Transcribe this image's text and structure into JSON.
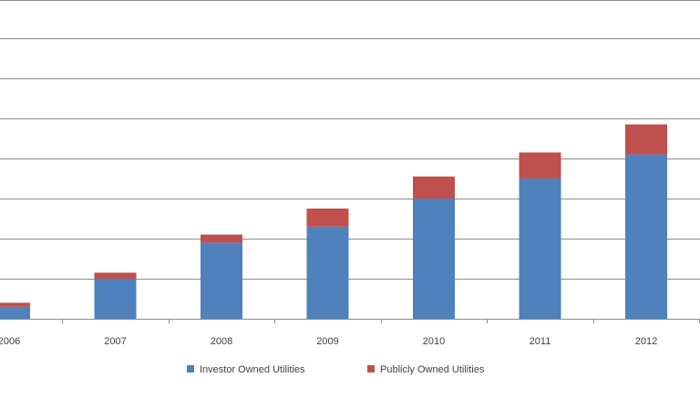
{
  "chart_data": {
    "type": "bar",
    "stacked": true,
    "categories": [
      "2006",
      "2007",
      "2008",
      "2009",
      "2010",
      "2011",
      "2012"
    ],
    "series": [
      {
        "name": "Investor Owned Utilities",
        "color": "#4F81BD",
        "values": [
          0.3,
          1.0,
          1.9,
          2.3,
          3.0,
          3.5,
          4.1
        ]
      },
      {
        "name": "Publicly Owned Utilities",
        "color": "#C0504D",
        "values": [
          0.1,
          0.15,
          0.2,
          0.45,
          0.55,
          0.65,
          0.75
        ]
      }
    ],
    "ylim": [
      0,
      7.5
    ],
    "grid": true,
    "legend_position": "bottom"
  }
}
